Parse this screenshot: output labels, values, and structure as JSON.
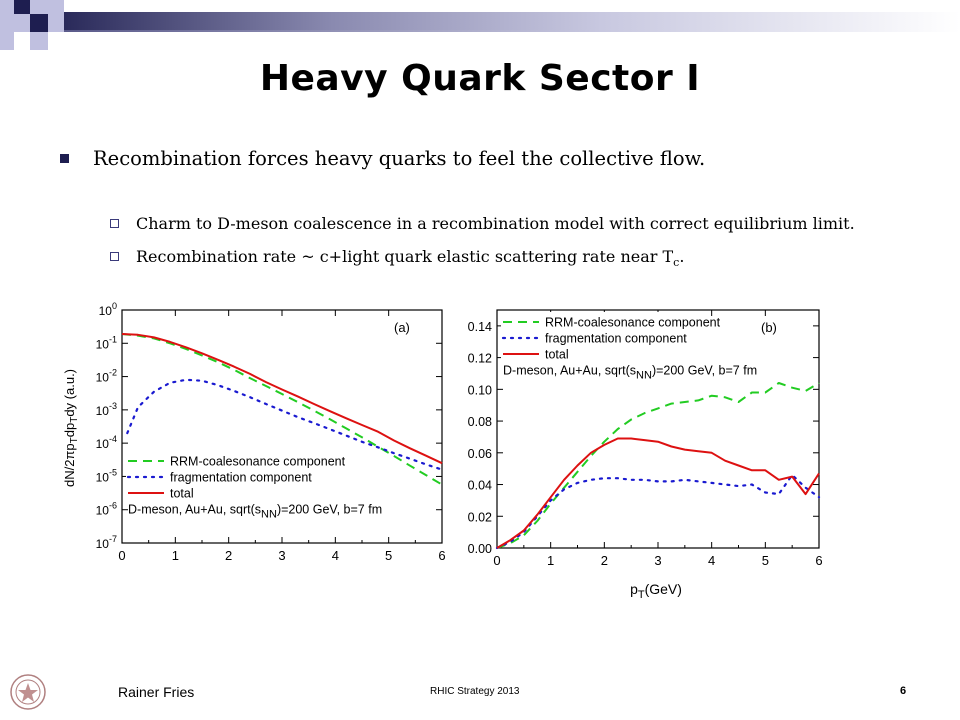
{
  "slide": {
    "title": "Heavy Quark Sector I",
    "bullet_main": "Recombination forces heavy quarks to feel the collective flow.",
    "sub_bullets": [
      "Charm to D-meson coalescence in a recombination model with correct equilibrium limit.",
      "Recombination rate ~ c+light quark elastic scattering rate near T"
    ],
    "sub_bullet_subscript": "c",
    "sub_bullet_end": ".",
    "footer_author": "Rainer Fries",
    "footer_center": "RHIC Strategy 2013",
    "page_number": "6",
    "logo_icon": "university-seal-icon"
  },
  "colors": {
    "accent_navy": "#1e1e50",
    "accent_lavender": "#c0c0e0",
    "coalescence": "#22cc22",
    "fragmentation": "#1a1ad0",
    "total": "#dd1111"
  },
  "chart_data": [
    {
      "type": "line",
      "panel_label": "(a)",
      "ylabel": "dN/2πp_T dp_T dy (a.u.)",
      "yscale": "log",
      "xlim": [
        0,
        6
      ],
      "ylim": [
        1e-07,
        1
      ],
      "xticks": [
        "0",
        "1",
        "2",
        "3",
        "4",
        "5",
        "6"
      ],
      "yticks": [
        "10^-7",
        "10^-6",
        "10^-5",
        "10^-4",
        "10^-3",
        "10^-2",
        "10^-1",
        "10^0"
      ],
      "legend_location": "bottom-left",
      "annotation": "D-meson, Au+Au, sqrt(sNN)=200 GeV, b=7 fm",
      "series": [
        {
          "name": "RRM-coalesonance component",
          "style": "dashed",
          "x": [
            0.0,
            0.3,
            0.6,
            0.9,
            1.2,
            1.5,
            1.8,
            2.1,
            2.4,
            2.7,
            3.0,
            3.3,
            3.6,
            3.9,
            4.2,
            4.5,
            4.8,
            5.1,
            5.4,
            5.7,
            6.0
          ],
          "y": [
            0.19,
            0.17,
            0.14,
            0.1,
            0.068,
            0.043,
            0.027,
            0.016,
            0.009,
            0.0052,
            0.003,
            0.0017,
            0.00095,
            0.00052,
            0.00028,
            0.00015,
            7.8e-05,
            4.1e-05,
            2.1e-05,
            1.1e-05,
            5.7e-06
          ]
        },
        {
          "name": "fragmentation component",
          "style": "dotted",
          "x": [
            0.1,
            0.3,
            0.6,
            0.9,
            1.2,
            1.5,
            1.8,
            2.1,
            2.4,
            2.7,
            3.0,
            3.3,
            3.6,
            3.9,
            4.2,
            4.5,
            4.8,
            5.1,
            5.4,
            5.7,
            6.0
          ],
          "y": [
            0.0002,
            0.0012,
            0.0035,
            0.0065,
            0.008,
            0.0075,
            0.0055,
            0.0037,
            0.0024,
            0.0015,
            0.00095,
            0.0006,
            0.0004,
            0.00026,
            0.00017,
            0.00011,
            7.5e-05,
            5e-05,
            3.4e-05,
            2.3e-05,
            1.6e-05
          ]
        },
        {
          "name": "total",
          "style": "solid",
          "x": [
            0.0,
            0.3,
            0.6,
            0.9,
            1.2,
            1.5,
            1.8,
            2.1,
            2.4,
            2.7,
            3.0,
            3.3,
            3.6,
            3.9,
            4.2,
            4.5,
            4.8,
            5.1,
            5.4,
            5.7,
            6.0
          ],
          "y": [
            0.19,
            0.18,
            0.15,
            0.11,
            0.076,
            0.05,
            0.032,
            0.02,
            0.012,
            0.0068,
            0.0041,
            0.0025,
            0.0015,
            0.00091,
            0.00056,
            0.00035,
            0.00022,
            0.00012,
            7e-05,
            4.2e-05,
            2.5e-05
          ]
        }
      ]
    },
    {
      "type": "line",
      "panel_label": "(b)",
      "xlabel": "p_T(GeV)",
      "yscale": "linear",
      "xlim": [
        0,
        6
      ],
      "ylim": [
        0,
        0.15
      ],
      "xticks": [
        "0",
        "1",
        "2",
        "3",
        "4",
        "5",
        "6"
      ],
      "yticks": [
        "0.00",
        "0.02",
        "0.04",
        "0.06",
        "0.08",
        "0.10",
        "0.12",
        "0.14"
      ],
      "legend_location": "top-left",
      "annotation": "D-meson, Au+Au, sqrt(sNN)=200 GeV, b=7 fm",
      "series": [
        {
          "name": "RRM-coalesonance component",
          "style": "dashed",
          "x": [
            0.0,
            0.25,
            0.5,
            0.75,
            1.0,
            1.25,
            1.5,
            1.75,
            2.0,
            2.25,
            2.5,
            2.75,
            3.0,
            3.25,
            3.5,
            3.75,
            4.0,
            4.25,
            4.5,
            4.75,
            5.0,
            5.25,
            5.5,
            5.75,
            6.0
          ],
          "y": [
            0.0,
            0.003,
            0.008,
            0.017,
            0.028,
            0.038,
            0.048,
            0.058,
            0.067,
            0.075,
            0.081,
            0.085,
            0.088,
            0.091,
            0.092,
            0.093,
            0.096,
            0.095,
            0.092,
            0.098,
            0.098,
            0.104,
            0.101,
            0.099,
            0.104
          ]
        },
        {
          "name": "fragmentation component",
          "style": "dotted",
          "x": [
            0.0,
            0.25,
            0.5,
            0.75,
            1.0,
            1.25,
            1.5,
            1.75,
            2.0,
            2.25,
            2.5,
            2.75,
            3.0,
            3.25,
            3.5,
            3.75,
            4.0,
            4.25,
            4.5,
            4.75,
            5.0,
            5.25,
            5.5,
            5.75,
            6.0
          ],
          "y": [
            0.0,
            0.004,
            0.01,
            0.02,
            0.03,
            0.037,
            0.041,
            0.043,
            0.044,
            0.044,
            0.043,
            0.043,
            0.042,
            0.042,
            0.043,
            0.042,
            0.041,
            0.04,
            0.039,
            0.04,
            0.035,
            0.034,
            0.046,
            0.038,
            0.032
          ]
        },
        {
          "name": "total",
          "style": "solid",
          "x": [
            0.0,
            0.25,
            0.5,
            0.75,
            1.0,
            1.25,
            1.5,
            1.75,
            2.0,
            2.25,
            2.5,
            2.75,
            3.0,
            3.25,
            3.5,
            3.75,
            4.0,
            4.25,
            4.5,
            4.75,
            5.0,
            5.25,
            5.5,
            5.75,
            6.0
          ],
          "y": [
            0.0,
            0.005,
            0.011,
            0.021,
            0.032,
            0.043,
            0.052,
            0.06,
            0.065,
            0.069,
            0.069,
            0.068,
            0.067,
            0.064,
            0.062,
            0.061,
            0.06,
            0.055,
            0.052,
            0.049,
            0.049,
            0.043,
            0.045,
            0.034,
            0.047
          ]
        }
      ]
    }
  ]
}
